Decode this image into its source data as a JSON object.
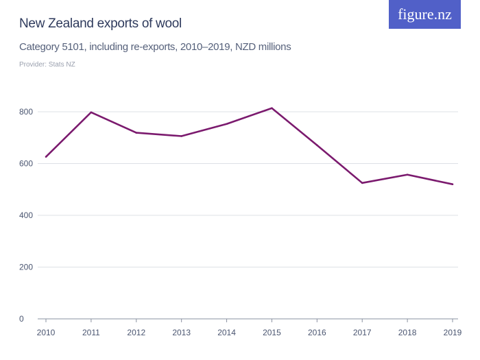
{
  "logo": "figure.nz",
  "chart_data": {
    "type": "line",
    "title": "New Zealand exports of wool",
    "subtitle": "Category 5101, including re-exports, 2010–2019, NZD millions",
    "provider": "Provider: Stats NZ",
    "x": [
      "2010",
      "2011",
      "2012",
      "2013",
      "2014",
      "2015",
      "2016",
      "2017",
      "2018",
      "2019"
    ],
    "series": [
      {
        "values": [
          626,
          798,
          719,
          706,
          753,
          814,
          671,
          525,
          557,
          520
        ],
        "color": "#7b1a6e"
      }
    ],
    "yticks": [
      0,
      200,
      400,
      600,
      800
    ],
    "ylim": [
      0,
      800
    ],
    "grid": true
  }
}
